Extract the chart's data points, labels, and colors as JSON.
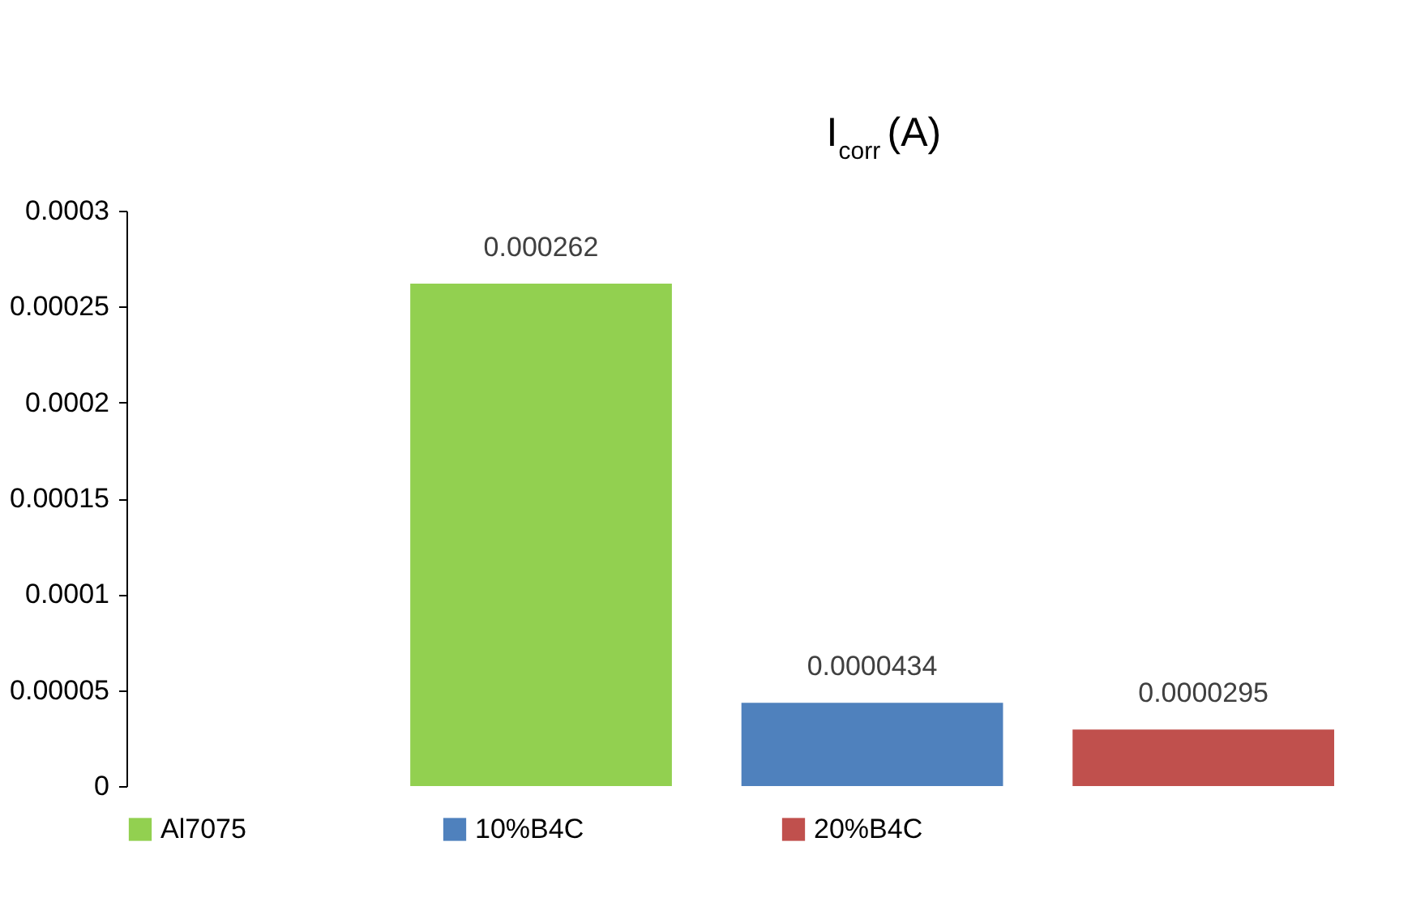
{
  "chart_data": {
    "type": "bar",
    "title": "I$_{corr}$ (A)",
    "categories": [
      null
    ],
    "series": [
      {
        "name": "Al7075",
        "color": "#92d050",
        "values": [
          0.000262
        ],
        "value_labels": [
          "0.000262"
        ]
      },
      {
        "name": "10%B4C",
        "color": "#4f81bd",
        "values": [
          4.34e-05
        ],
        "value_labels": [
          "0.0000434"
        ]
      },
      {
        "name": "20%B4C",
        "color": "#c0504d",
        "values": [
          2.95e-05
        ],
        "value_labels": [
          "0.0000295"
        ]
      }
    ],
    "ylim": [
      0,
      0.0003
    ],
    "yticks": [
      0,
      {
        "value": 5e-05,
        "label": "0.00005"
      },
      0.0001,
      0.00015,
      0.0002,
      0.00025,
      0.0003
    ],
    "grid": false,
    "legend": "bottom"
  }
}
